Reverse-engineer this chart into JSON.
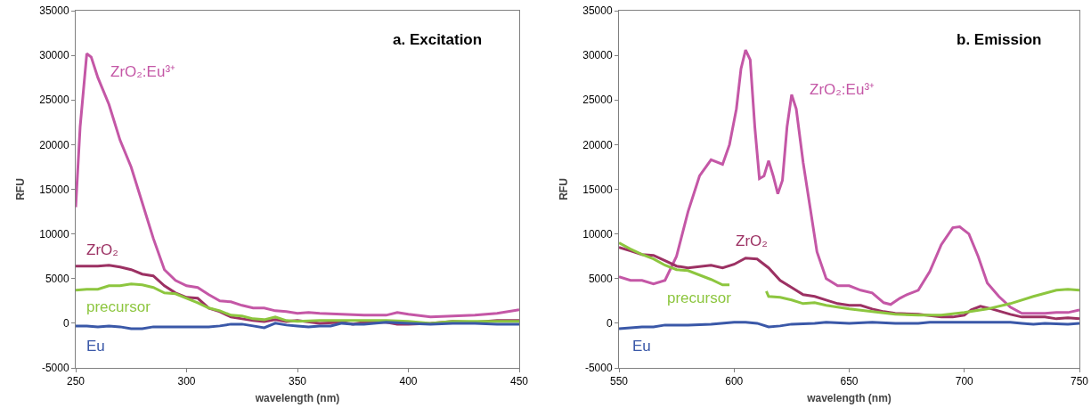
{
  "chart_data": [
    {
      "type": "line",
      "title": "a. Excitation",
      "xlabel": "wavelength (nm)",
      "ylabel": "RFU",
      "xlim": [
        250,
        450
      ],
      "xticks": [
        250,
        300,
        350,
        400,
        450
      ],
      "ylim": [
        -5000,
        35000
      ],
      "yticks": [
        -5000,
        0,
        5000,
        10000,
        15000,
        20000,
        25000,
        30000,
        35000
      ],
      "grid": false,
      "series": [
        {
          "name": "ZrO₂:Eu³⁺",
          "color": "#c457a6",
          "x": [
            250,
            252,
            255,
            257,
            260,
            265,
            270,
            275,
            280,
            285,
            290,
            295,
            300,
            305,
            310,
            315,
            320,
            325,
            330,
            335,
            340,
            345,
            350,
            355,
            360,
            370,
            380,
            390,
            395,
            400,
            410,
            420,
            430,
            440,
            450
          ],
          "values": [
            13000,
            22000,
            30200,
            29800,
            27500,
            24500,
            20500,
            17500,
            13500,
            9500,
            6000,
            4800,
            4200,
            4000,
            3200,
            2500,
            2400,
            2000,
            1700,
            1700,
            1400,
            1300,
            1100,
            1200,
            1100,
            1000,
            900,
            900,
            1200,
            1000,
            700,
            800,
            900,
            1100,
            1500
          ]
        },
        {
          "name": "ZrO₂",
          "color": "#9c3163",
          "x": [
            250,
            260,
            265,
            270,
            275,
            280,
            285,
            290,
            295,
            300,
            305,
            310,
            315,
            320,
            325,
            330,
            335,
            340,
            345,
            350,
            360,
            370,
            375,
            380,
            390,
            395,
            400,
            410,
            420,
            430,
            440,
            450
          ],
          "values": [
            6400,
            6400,
            6500,
            6300,
            6000,
            5500,
            5300,
            4200,
            3400,
            2900,
            2800,
            1700,
            1300,
            700,
            500,
            300,
            200,
            400,
            200,
            300,
            0,
            100,
            -100,
            100,
            100,
            -100,
            -100,
            0,
            200,
            100,
            300,
            300
          ]
        },
        {
          "name": "precursor",
          "color": "#8dc63f",
          "x": [
            250,
            255,
            260,
            265,
            270,
            275,
            280,
            285,
            290,
            295,
            300,
            305,
            310,
            315,
            320,
            325,
            330,
            335,
            340,
            345,
            350,
            360,
            370,
            380,
            390,
            400,
            410,
            420,
            430,
            440,
            450
          ],
          "values": [
            3700,
            3800,
            3800,
            4200,
            4200,
            4400,
            4300,
            4000,
            3400,
            3300,
            2800,
            2300,
            1700,
            1400,
            900,
            800,
            500,
            400,
            700,
            300,
            200,
            300,
            300,
            300,
            300,
            200,
            0,
            200,
            200,
            200,
            200
          ]
        },
        {
          "name": "Eu",
          "color": "#3a58a8",
          "x": [
            250,
            255,
            260,
            265,
            270,
            275,
            280,
            285,
            290,
            300,
            310,
            315,
            320,
            325,
            330,
            335,
            340,
            345,
            350,
            355,
            360,
            365,
            370,
            375,
            380,
            390,
            400,
            410,
            420,
            430,
            440,
            450
          ],
          "values": [
            -300,
            -300,
            -400,
            -300,
            -400,
            -600,
            -600,
            -400,
            -400,
            -400,
            -400,
            -300,
            -100,
            -100,
            -300,
            -500,
            0,
            -200,
            -300,
            -400,
            -300,
            -300,
            0,
            -100,
            -100,
            100,
            0,
            -100,
            0,
            0,
            -100,
            -100
          ]
        }
      ]
    },
    {
      "type": "line",
      "title": "b. Emission",
      "xlabel": "wavelength (nm)",
      "ylabel": "RFU",
      "xlim": [
        550,
        750
      ],
      "xticks": [
        550,
        600,
        650,
        700,
        750
      ],
      "ylim": [
        -5000,
        35000
      ],
      "yticks": [
        -5000,
        0,
        5000,
        10000,
        15000,
        20000,
        25000,
        30000,
        35000
      ],
      "grid": false,
      "series": [
        {
          "name": "ZrO₂:Eu³⁺",
          "color": "#c457a6",
          "x": [
            550,
            555,
            560,
            565,
            570,
            575,
            580,
            585,
            590,
            595,
            598,
            601,
            603,
            605,
            607,
            609,
            611,
            613,
            615,
            617,
            619,
            621,
            623,
            625,
            627,
            630,
            633,
            636,
            640,
            645,
            650,
            655,
            660,
            665,
            668,
            672,
            675,
            680,
            685,
            690,
            695,
            698,
            702,
            706,
            710,
            715,
            720,
            725,
            735,
            740,
            745,
            750
          ],
          "values": [
            5200,
            4800,
            4800,
            4400,
            4800,
            7500,
            12500,
            16500,
            18300,
            17800,
            20000,
            24000,
            28500,
            30600,
            29500,
            22000,
            16200,
            16500,
            18200,
            16500,
            14500,
            16000,
            22000,
            25600,
            24000,
            18000,
            13000,
            8000,
            5000,
            4200,
            4200,
            3700,
            3400,
            2300,
            2100,
            2800,
            3200,
            3700,
            5800,
            8800,
            10700,
            10800,
            10000,
            7500,
            4500,
            3000,
            1800,
            1100,
            1100,
            1200,
            1200,
            1500
          ]
        },
        {
          "name": "ZrO₂",
          "color": "#9c3163",
          "x": [
            550,
            555,
            560,
            565,
            570,
            575,
            580,
            590,
            595,
            600,
            605,
            610,
            615,
            620,
            625,
            630,
            635,
            640,
            645,
            650,
            655,
            660,
            665,
            670,
            680,
            690,
            695,
            700,
            703,
            707,
            712,
            720,
            725,
            735,
            740,
            745,
            750
          ],
          "values": [
            8500,
            8100,
            7700,
            7600,
            7000,
            6400,
            6200,
            6500,
            6200,
            6600,
            7300,
            7200,
            6200,
            4800,
            4000,
            3200,
            3000,
            2600,
            2200,
            2000,
            2000,
            1600,
            1300,
            1100,
            1000,
            700,
            700,
            900,
            1500,
            1900,
            1600,
            1000,
            700,
            700,
            500,
            600,
            500
          ]
        },
        {
          "name": "precursor",
          "color": "#8dc63f",
          "x": [
            550,
            555,
            560,
            565,
            570,
            575,
            580,
            590,
            595,
            598,
            605,
            614,
            615,
            620,
            625,
            630,
            635,
            640,
            650,
            660,
            670,
            680,
            690,
            700,
            710,
            720,
            730,
            740,
            745,
            750
          ],
          "values": [
            9000,
            8300,
            7700,
            7200,
            6500,
            6000,
            5900,
            4900,
            4300,
            4300,
            null,
            3600,
            3000,
            2900,
            2600,
            2200,
            2300,
            2000,
            1600,
            1300,
            1000,
            900,
            900,
            1200,
            1600,
            2200,
            3000,
            3700,
            3800,
            3700
          ]
        },
        {
          "name": "Eu",
          "color": "#3a58a8",
          "x": [
            550,
            560,
            565,
            570,
            580,
            590,
            600,
            605,
            610,
            615,
            620,
            625,
            635,
            640,
            650,
            660,
            670,
            680,
            685,
            700,
            720,
            725,
            730,
            735,
            745,
            750
          ],
          "values": [
            -600,
            -400,
            -400,
            -200,
            -200,
            -100,
            100,
            100,
            0,
            -400,
            -300,
            -100,
            0,
            100,
            0,
            100,
            0,
            0,
            100,
            100,
            100,
            0,
            -100,
            0,
            -100,
            0
          ]
        }
      ]
    }
  ]
}
